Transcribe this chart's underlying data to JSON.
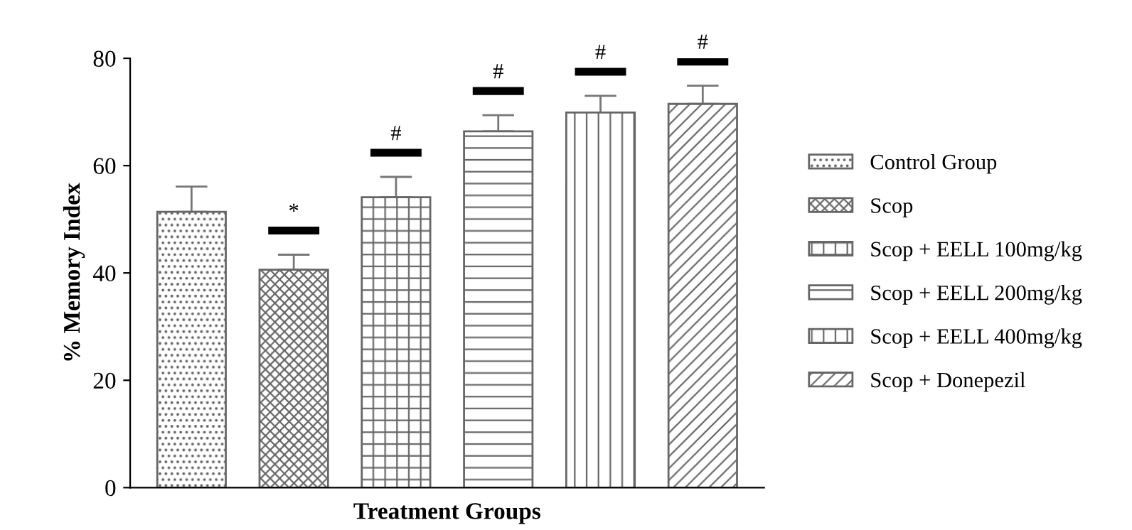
{
  "chart_data": {
    "type": "bar",
    "xlabel": "Treatment Groups",
    "ylabel": "% Memory Index",
    "categories": [
      null,
      null,
      null,
      null,
      null,
      null
    ],
    "ylim": [
      0,
      80
    ],
    "yticks": [
      0,
      20,
      40,
      60,
      80
    ],
    "grid": false,
    "legend": "right",
    "tick_labels": "y",
    "series": [
      {
        "name": "Control Group",
        "color": "#666666",
        "values": [
          51.4,
          null,
          null,
          null,
          null,
          null
        ],
        "errors": [
          4.7,
          null,
          null,
          null,
          null,
          null
        ]
      },
      {
        "name": "Scop",
        "color": "#666666",
        "values": [
          null,
          40.6,
          null,
          null,
          null,
          null
        ],
        "errors": [
          null,
          2.8,
          null,
          null,
          null,
          null
        ]
      },
      {
        "name": "Scop + EELL 100mg/kg",
        "color": "#666666",
        "values": [
          null,
          null,
          54.1,
          null,
          null,
          null
        ],
        "errors": [
          null,
          null,
          3.8,
          null,
          null,
          null
        ]
      },
      {
        "name": "Scop + EELL 200mg/kg",
        "color": "#666666",
        "values": [
          null,
          null,
          null,
          66.4,
          null,
          null
        ],
        "errors": [
          null,
          null,
          null,
          3.0,
          null,
          null
        ]
      },
      {
        "name": "Scop + EELL 400mg/kg",
        "color": "#666666",
        "values": [
          null,
          null,
          null,
          null,
          69.9,
          null
        ],
        "errors": [
          null,
          null,
          null,
          null,
          3.1,
          null
        ]
      },
      {
        "name": "Scop + Donepezil",
        "color": "#666666",
        "values": [
          null,
          null,
          null,
          null,
          null,
          71.5
        ],
        "errors": [
          null,
          null,
          null,
          null,
          null,
          3.4
        ]
      }
    ],
    "annotations": [
      "*",
      "#",
      "#",
      "#",
      "#"
    ]
  }
}
